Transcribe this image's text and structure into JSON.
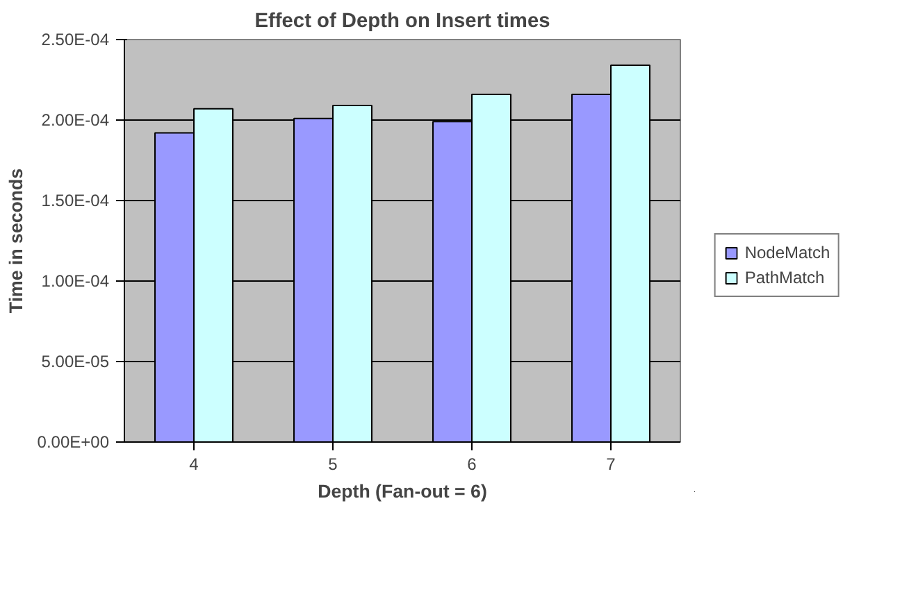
{
  "chart_data": {
    "type": "bar",
    "title": "Effect of Depth on Insert times",
    "xlabel": "Depth (Fan-out = 6)",
    "ylabel": "Time in seconds",
    "categories": [
      "4",
      "5",
      "6",
      "7"
    ],
    "series": [
      {
        "name": "NodeMatch",
        "color": "#9999ff",
        "values": [
          0.000192,
          0.000201,
          0.000199,
          0.000216
        ]
      },
      {
        "name": "PathMatch",
        "color": "#ccffff",
        "values": [
          0.000207,
          0.000209,
          0.000216,
          0.000234
        ]
      }
    ],
    "ylim": [
      0,
      0.00025
    ],
    "yticks": [
      {
        "value": 0,
        "label": "0.00E+00"
      },
      {
        "value": 5e-05,
        "label": "5.00E-05"
      },
      {
        "value": 0.0001,
        "label": "1.00E-04"
      },
      {
        "value": 0.00015,
        "label": "1.50E-04"
      },
      {
        "value": 0.0002,
        "label": "2.00E-04"
      },
      {
        "value": 0.00025,
        "label": "2.50E-04"
      }
    ],
    "grid": "y",
    "legend": "right"
  }
}
